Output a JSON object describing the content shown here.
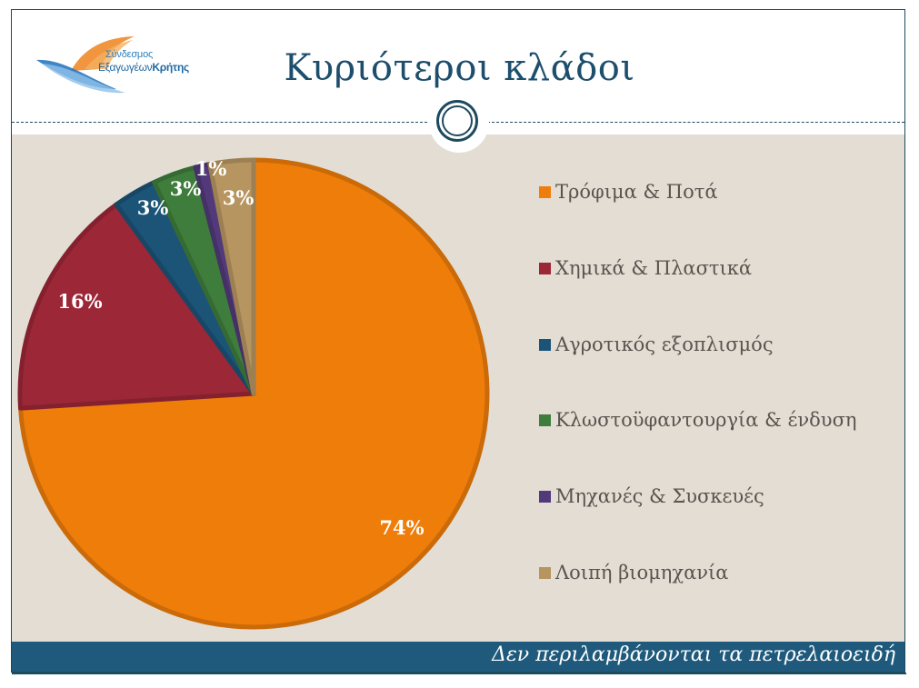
{
  "header": {
    "title": "Κυριότεροι κλάδοι",
    "logo": {
      "line1": "Σύνδεσμος",
      "line2_regular": "Εξαγωγέων",
      "line2_bold": "Κρήτης"
    }
  },
  "footer": {
    "note": "Δεν περιλαμβάνονται τα πετρελαιοειδή"
  },
  "colors": {
    "frame": "#1e4a5f",
    "title": "#1d4e6c",
    "content_bg": "#e3ddd4",
    "footer_bg": "#1f5a7c",
    "legend_text": "#5a5450"
  },
  "chart_data": {
    "type": "pie",
    "title": "Κυριότεροι κλάδοι",
    "categories": [
      "Τρόφιμα & Ποτά",
      "Χημικά & Πλαστικά",
      "Αγροτικός εξοπλισμός",
      "Κλωστοϋφαντουργία & ένδυση",
      "Μηχανές & Συσκευές",
      "Λοιπή βιομηχανία"
    ],
    "values": [
      74,
      16,
      3,
      3,
      1,
      3
    ],
    "labels": [
      "74%",
      "16%",
      "3%",
      "3%",
      "1%",
      "3%"
    ],
    "colors": [
      "#ee7d0a",
      "#9c2737",
      "#1c5478",
      "#3f7d3c",
      "#51397a",
      "#b79560"
    ],
    "legend_position": "right",
    "start_angle": "12 o'clock, clockwise"
  },
  "legend": {
    "items": [
      {
        "label": "Τρόφιμα & Ποτά",
        "color": "#ee7d0a"
      },
      {
        "label": "Χημικά & Πλαστικά",
        "color": "#9c2737"
      },
      {
        "label": "Αγροτικός εξοπλισμός",
        "color": "#1c5478"
      },
      {
        "label": "Κλωστοϋφαντουργία & ένδυση",
        "color": "#3f7d3c"
      },
      {
        "label": "Μηχανές & Συσκευές",
        "color": "#51397a"
      },
      {
        "label": "Λοιπή βιομηχανία",
        "color": "#b79560"
      }
    ]
  }
}
